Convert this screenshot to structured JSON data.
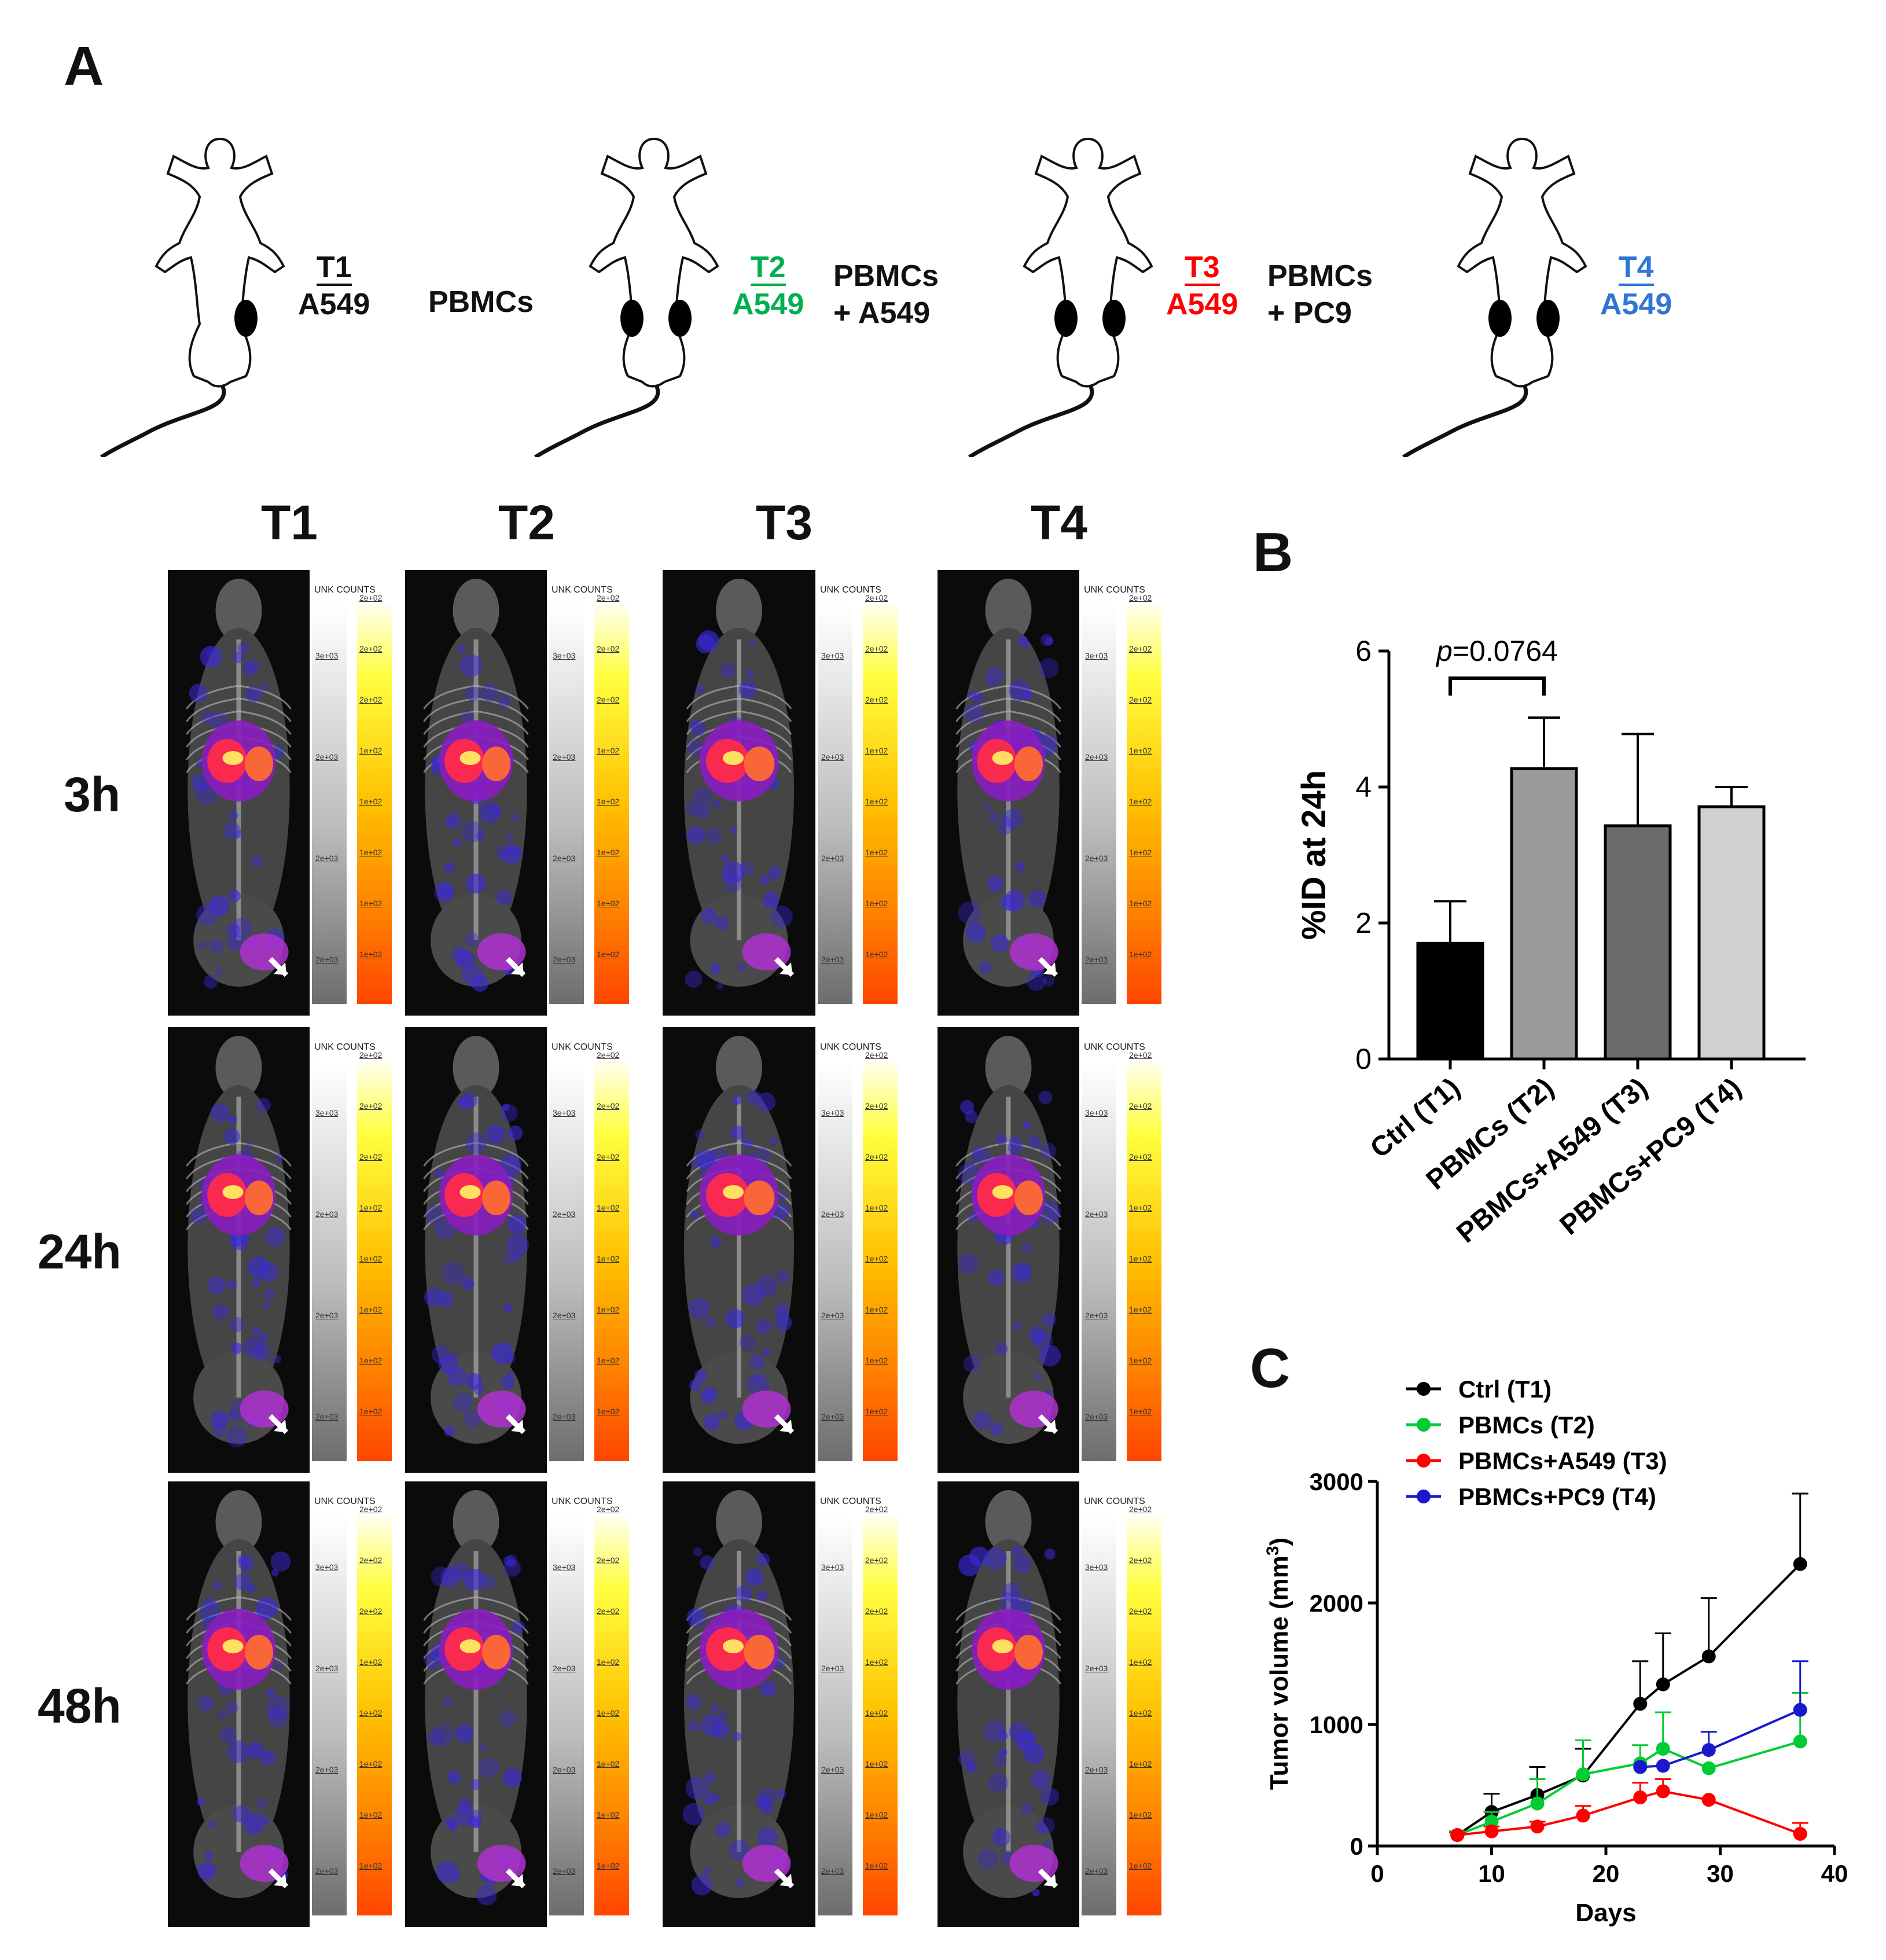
{
  "panels": {
    "a": "A",
    "b": "B",
    "c": "C"
  },
  "schematic": {
    "groups": [
      {
        "left_label": "",
        "top": "T1",
        "bottom": "A549",
        "color": "#111111"
      },
      {
        "left_label": "PBMCs",
        "top": "T2",
        "bottom": "A549",
        "color": "#00b050"
      },
      {
        "left_label": "PBMCs\n+ A549",
        "top": "T3",
        "bottom": "A549",
        "color": "#ff0000"
      },
      {
        "left_label": "PBMCs\n+ PC9",
        "top": "T4",
        "bottom": "A549",
        "color": "#2e75d6"
      }
    ]
  },
  "imaging": {
    "columns": [
      "T1",
      "T2",
      "T3",
      "T4"
    ],
    "rows": [
      "3h",
      "24h",
      "48h"
    ],
    "scale_title": "UNK COUNTS",
    "gray_ticks": [
      "3e+03",
      "2e+03",
      "2e+03",
      "2e+03"
    ],
    "heat_ticks": [
      "2e+02",
      "2e+02",
      "2e+02",
      "1e+02",
      "1e+02",
      "1e+02",
      "1e+02",
      "1e+02"
    ]
  },
  "bar_chart": {
    "chart_data": {
      "type": "bar",
      "categories": [
        "Ctrl (T1)",
        "PBMCs (T2)",
        "PBMCs+A549 (T3)",
        "PBMCs+PC9 (T4)"
      ],
      "values": [
        1.7,
        4.27,
        3.43,
        3.71
      ],
      "errors": [
        0.62,
        0.75,
        1.35,
        0.29
      ],
      "colors": [
        "#000000",
        "#9b9b9b",
        "#6b6b6b",
        "#d0d0d0"
      ],
      "ylabel": "%ID at 24h",
      "ylim": [
        0,
        6
      ],
      "yticks": [
        0,
        2,
        4,
        6
      ],
      "annotation": {
        "p_italic": "p",
        "p_text": "=0.0764",
        "between": [
          0,
          1
        ]
      }
    }
  },
  "line_chart": {
    "chart_data": {
      "type": "line",
      "xlabel": "Days",
      "ylabel": "Tumor volume (mm",
      "ylabel_sup": "3",
      "ylabel_close": ")",
      "xlim": [
        0,
        40
      ],
      "ylim": [
        0,
        3000
      ],
      "xticks": [
        0,
        10,
        20,
        30,
        40
      ],
      "yticks": [
        0,
        1000,
        2000,
        3000
      ],
      "legend_position": "top-left",
      "series": [
        {
          "name": "Ctrl (T1)",
          "color": "#000000",
          "x": [
            7,
            10,
            14,
            18,
            23,
            25,
            29,
            37
          ],
          "y": [
            90,
            280,
            420,
            580,
            1170,
            1330,
            1560,
            2320
          ],
          "err": [
            30,
            150,
            230,
            220,
            350,
            420,
            480,
            580
          ]
        },
        {
          "name": "PBMCs (T2)",
          "color": "#00cc33",
          "x": [
            7,
            10,
            14,
            18,
            23,
            25,
            29,
            37
          ],
          "y": [
            90,
            200,
            350,
            590,
            680,
            800,
            640,
            860
          ],
          "err": [
            30,
            80,
            200,
            280,
            150,
            300,
            0,
            400
          ]
        },
        {
          "name": "PBMCs+A549 (T3)",
          "color": "#ff0000",
          "x": [
            7,
            10,
            14,
            18,
            23,
            25,
            29,
            37
          ],
          "y": [
            90,
            120,
            160,
            250,
            400,
            450,
            380,
            100
          ],
          "err": [
            20,
            40,
            40,
            80,
            120,
            100,
            0,
            90
          ]
        },
        {
          "name": "PBMCs+PC9 (T4)",
          "color": "#1a1acc",
          "x": [
            23,
            25,
            29,
            37
          ],
          "y": [
            650,
            660,
            790,
            1120
          ],
          "err": [
            0,
            0,
            150,
            400
          ]
        }
      ]
    }
  }
}
